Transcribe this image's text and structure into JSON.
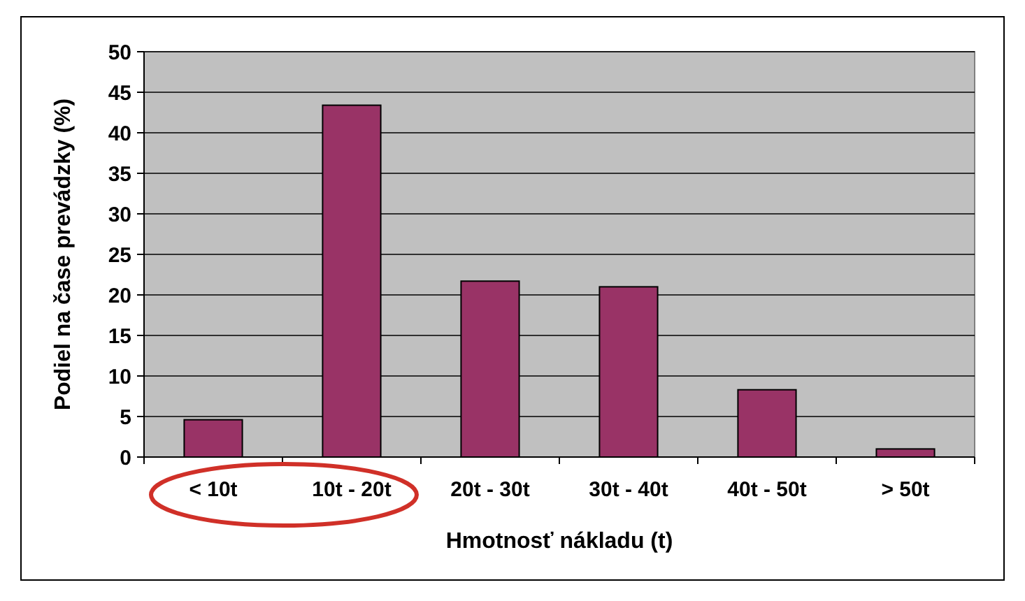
{
  "chart_data": {
    "type": "bar",
    "xlabel": "Hmotnosť nákladu (t)",
    "ylabel": "Podiel na čase prevádzky (%)",
    "categories": [
      "< 10t",
      "10t - 20t",
      "20t - 30t",
      "30t - 40t",
      "40t - 50t",
      "> 50t"
    ],
    "values": [
      4.6,
      43.4,
      21.7,
      21.0,
      8.3,
      1.0
    ],
    "color": "#993366",
    "ylim": [
      0,
      50
    ],
    "yticks": [
      0,
      5,
      10,
      15,
      20,
      25,
      30,
      35,
      40,
      45,
      50
    ],
    "grid": "y"
  }
}
